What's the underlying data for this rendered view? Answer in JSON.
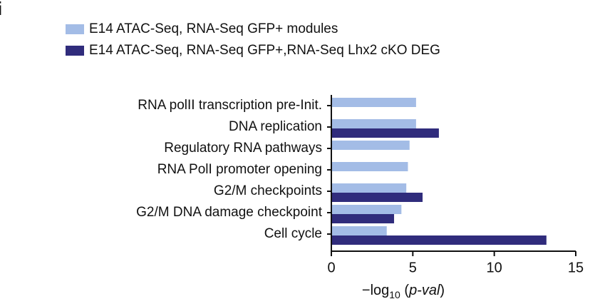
{
  "chart_data": {
    "type": "hbar",
    "panel_label": "i",
    "categories": [
      "RNA polII transcription pre-Init.",
      "DNA replication",
      "Regulatory RNA pathways",
      "RNA PolI promoter opening",
      "G2/M checkpoints",
      "G2/M DNA damage checkpoint",
      "Cell cycle"
    ],
    "series": [
      {
        "name": "E14 ATAC-Seq, RNA-Seq GFP+ modules",
        "color": "#a3bce6",
        "values": [
          5.2,
          5.2,
          4.8,
          4.7,
          4.6,
          4.3,
          3.4
        ]
      },
      {
        "name": "E14 ATAC-Seq, RNA-Seq GFP+,RNA-Seq Lhx2 cKO DEG",
        "color": "#302c7c",
        "values": [
          null,
          6.6,
          null,
          null,
          5.6,
          3.85,
          13.2
        ]
      }
    ],
    "x_label": {
      "main": "−log",
      "subscript": "10",
      "open": " (",
      "italic": "p-val",
      "close": ")"
    },
    "xlim": [
      0,
      15
    ],
    "xticks": [
      0,
      5,
      10,
      15
    ]
  }
}
